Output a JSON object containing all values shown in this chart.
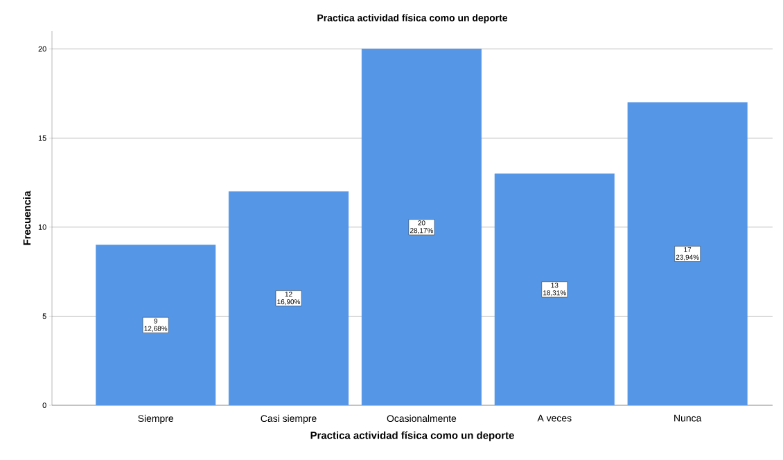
{
  "chart_data": {
    "type": "bar",
    "title": "Practica actividad física como un deporte",
    "xlabel": "Practica actividad física como un deporte",
    "ylabel": "Frecuencia",
    "categories": [
      "Siempre",
      "Casi siempre",
      "Ocasionalmente",
      "A veces",
      "Nunca"
    ],
    "values": [
      9,
      12,
      20,
      13,
      17
    ],
    "value_labels": [
      "9 12,68%",
      "12 16,90%",
      "20 28,17%",
      "13 18,31%",
      "17 23,94%"
    ],
    "color": "#5596e6",
    "ylim": [
      0,
      21
    ],
    "yticks": [
      0,
      5,
      10,
      15,
      20
    ],
    "grid": "y"
  }
}
